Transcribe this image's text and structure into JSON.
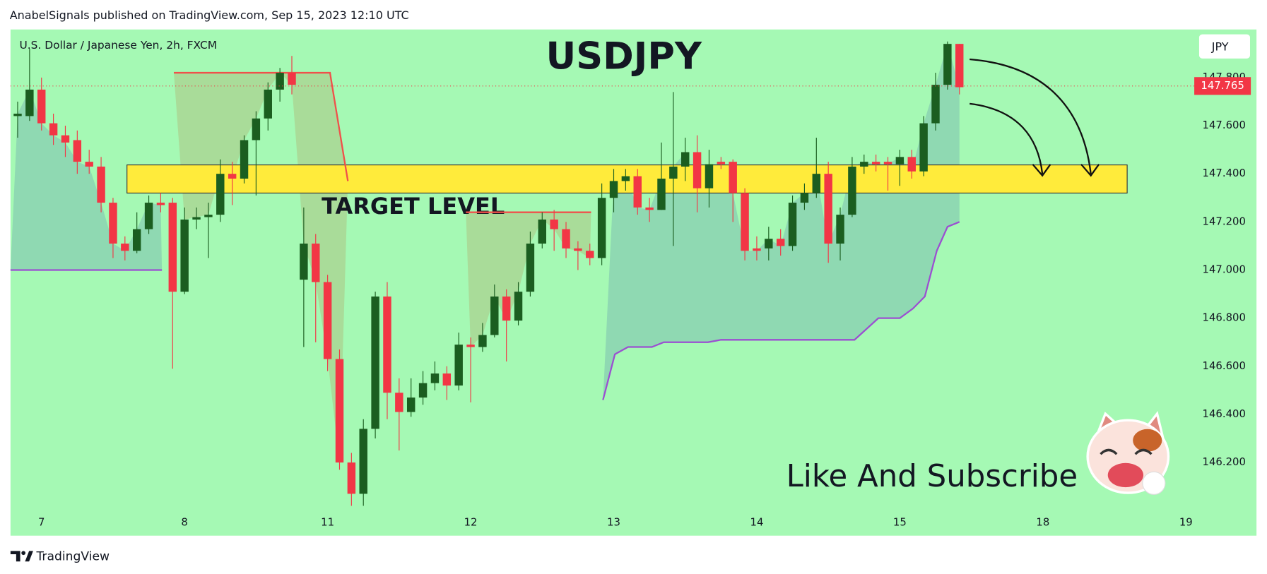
{
  "page": {
    "published": "AnabelSignals published on TradingView.com, Sep 15, 2023 12:10 UTC",
    "brand": "TradingView"
  },
  "chart_data": {
    "type": "candlestick",
    "title": "USDJPY",
    "subtitle": "U.S. Dollar / Japanese Yen, 2h, FXCM",
    "currency": "JPY",
    "annotations": [
      "Like And Subscribe"
    ],
    "up_color": "#1b5e20",
    "down_color": "#f23645",
    "background": "#a5f9b4",
    "open": [
      147.64,
      147.64,
      147.75,
      147.61,
      147.56,
      147.54,
      147.45,
      147.43,
      147.28,
      147.11,
      147.08,
      147.17,
      147.28,
      147.28,
      146.91,
      147.21,
      147.22,
      147.23,
      147.4,
      147.38,
      147.54,
      147.63,
      147.75,
      147.82,
      146.96,
      147.11,
      146.95,
      146.63,
      146.2,
      146.07,
      146.34,
      146.89,
      146.49,
      146.41,
      146.47,
      146.53,
      146.57,
      146.52,
      146.69,
      146.68,
      146.73,
      146.89,
      146.79,
      146.91,
      147.11,
      147.21,
      147.17,
      147.09,
      147.08,
      147.05,
      147.3,
      147.37,
      147.39,
      147.26,
      147.25,
      147.38,
      147.43,
      147.49,
      147.34,
      147.45,
      147.45,
      147.32,
      147.09,
      147.09,
      147.13,
      147.1,
      147.28,
      147.32,
      147.4,
      147.11,
      147.23,
      147.43,
      147.45,
      147.45,
      147.44,
      147.47,
      147.41,
      147.61,
      147.77,
      147.94
    ],
    "high": [
      147.7,
      147.92,
      147.8,
      147.65,
      147.6,
      147.58,
      147.5,
      147.47,
      147.3,
      147.14,
      147.24,
      147.31,
      147.32,
      147.3,
      147.26,
      147.26,
      147.28,
      147.46,
      147.45,
      147.56,
      147.66,
      147.78,
      147.84,
      147.89,
      147.26,
      147.15,
      146.98,
      146.67,
      146.24,
      146.38,
      146.91,
      146.95,
      146.55,
      146.55,
      146.58,
      146.62,
      146.6,
      146.74,
      146.72,
      146.78,
      146.94,
      146.92,
      146.95,
      147.16,
      147.24,
      147.25,
      147.2,
      147.12,
      147.11,
      147.36,
      147.42,
      147.42,
      147.42,
      147.3,
      147.53,
      147.74,
      147.55,
      147.56,
      147.5,
      147.47,
      147.46,
      147.34,
      147.14,
      147.18,
      147.17,
      147.31,
      147.36,
      147.55,
      147.45,
      147.26,
      147.47,
      147.48,
      147.48,
      147.47,
      147.5,
      147.5,
      147.64,
      147.82,
      147.95,
      147.94
    ],
    "low": [
      147.55,
      147.62,
      147.58,
      147.52,
      147.47,
      147.4,
      147.4,
      147.24,
      147.05,
      147.04,
      147.07,
      147.15,
      147.24,
      146.59,
      146.9,
      147.17,
      147.05,
      147.2,
      147.27,
      147.36,
      147.31,
      147.58,
      147.7,
      147.73,
      146.68,
      146.7,
      146.58,
      146.17,
      146.02,
      146.02,
      146.3,
      146.38,
      146.25,
      146.39,
      146.44,
      146.5,
      146.46,
      146.5,
      146.45,
      146.66,
      146.72,
      146.62,
      146.77,
      146.89,
      147.09,
      147.08,
      147.05,
      147.0,
      147.02,
      147.02,
      147.24,
      147.33,
      147.23,
      147.2,
      147.25,
      147.1,
      147.37,
      147.24,
      147.26,
      147.42,
      147.2,
      147.04,
      147.04,
      147.04,
      147.06,
      147.08,
      147.25,
      147.3,
      147.03,
      147.04,
      147.22,
      147.4,
      147.41,
      147.33,
      147.35,
      147.38,
      147.39,
      147.58,
      147.75,
      147.73
    ],
    "close": [
      147.65,
      147.75,
      147.61,
      147.56,
      147.53,
      147.45,
      147.43,
      147.28,
      147.11,
      147.08,
      147.17,
      147.28,
      147.27,
      146.91,
      147.21,
      147.22,
      147.23,
      147.4,
      147.38,
      147.54,
      147.63,
      147.75,
      147.82,
      147.77,
      147.11,
      146.95,
      146.63,
      146.2,
      146.07,
      146.34,
      146.89,
      146.49,
      146.41,
      146.47,
      146.53,
      146.57,
      146.52,
      146.69,
      146.68,
      146.73,
      146.89,
      146.79,
      146.91,
      147.11,
      147.21,
      147.17,
      147.09,
      147.08,
      147.05,
      147.3,
      147.37,
      147.39,
      147.26,
      147.25,
      147.38,
      147.43,
      147.49,
      147.34,
      147.44,
      147.44,
      147.32,
      147.08,
      147.08,
      147.13,
      147.1,
      147.28,
      147.32,
      147.4,
      147.11,
      147.23,
      147.43,
      147.45,
      147.44,
      147.44,
      147.47,
      147.41,
      147.61,
      147.77,
      147.94,
      147.76
    ],
    "last_price": 147.765,
    "overlays": [
      {
        "color": "#9b4fd1",
        "fill": "rgba(110,170,175,0.4)",
        "x": [
          -0.6,
          12.1
        ],
        "values": [
          147.0,
          147.0
        ]
      },
      {
        "color": "#f0504a",
        "fill": "rgba(175,185,120,0.45)",
        "x": [
          13.1,
          26.2,
          27.7
        ],
        "values": [
          147.82,
          147.82,
          147.37
        ]
      },
      {
        "color": "#f0504a",
        "fill": "rgba(175,185,120,0.45)",
        "x": [
          37.6,
          48.1
        ],
        "values": [
          147.24,
          147.24
        ]
      },
      {
        "color": "#9b4fd1",
        "fill": "rgba(110,170,175,0.4)",
        "x": [
          49.1,
          50.1,
          51.2,
          53.2,
          54.2,
          57.9,
          59.0,
          70.2,
          72.2,
          74.0,
          75.1,
          76.1,
          77.1,
          78.0,
          79.0
        ],
        "values": [
          146.46,
          146.65,
          146.68,
          146.68,
          146.7,
          146.7,
          146.71,
          146.71,
          146.8,
          146.8,
          146.84,
          146.89,
          147.08,
          147.18,
          147.2
        ]
      }
    ],
    "zone": {
      "label": "TARGET LEVEL",
      "color": "#ffeb3b",
      "xlim": [
        9.17,
        93.07
      ],
      "ylim": [
        147.32,
        147.437
      ]
    },
    "xlim": [
      -0.6,
      98.7
    ],
    "ylim": [
      146.0,
      148.0
    ],
    "xticks": [
      {
        "value": 2,
        "label": "7"
      },
      {
        "value": 14,
        "label": "8"
      },
      {
        "value": 26,
        "label": "11"
      },
      {
        "value": 38,
        "label": "12"
      },
      {
        "value": 50,
        "label": "13"
      },
      {
        "value": 62,
        "label": "14"
      },
      {
        "value": 74,
        "label": "15"
      },
      {
        "value": 86,
        "label": "18"
      },
      {
        "value": 98,
        "label": "19"
      }
    ],
    "yticks": [
      {
        "value": 146.2,
        "label": "146.200"
      },
      {
        "value": 146.4,
        "label": "146.400"
      },
      {
        "value": 146.6,
        "label": "146.600"
      },
      {
        "value": 146.8,
        "label": "146.800"
      },
      {
        "value": 147.0,
        "label": "147.000"
      },
      {
        "value": 147.2,
        "label": "147.200"
      },
      {
        "value": 147.4,
        "label": "147.400"
      },
      {
        "value": 147.6,
        "label": "147.600"
      },
      {
        "value": 147.8,
        "label": "147.800"
      }
    ]
  }
}
